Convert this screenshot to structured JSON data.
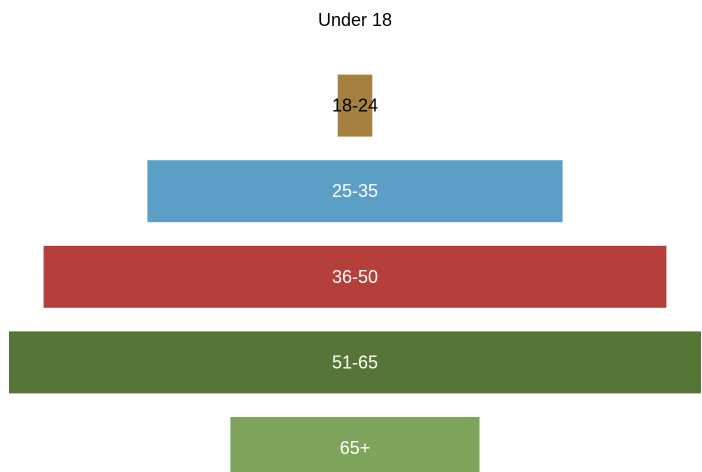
{
  "chart_data": {
    "type": "bar",
    "orientation": "horizontal",
    "layout": "centered-funnel",
    "categories": [
      "Under 18",
      "18-24",
      "25-35",
      "36-50",
      "51-65",
      "65+"
    ],
    "values": [
      0,
      5,
      60,
      90,
      100,
      36
    ],
    "value_unit": "percent of largest group",
    "colors": [
      "#ffffff",
      "#a5803f",
      "#5b9fc6",
      "#b53f3b",
      "#557636",
      "#7da45a"
    ],
    "label_colors": [
      "#000000",
      "#000000",
      "#ffffff",
      "#ffffff",
      "#ffffff",
      "#ffffff"
    ],
    "title": "",
    "xlabel": "",
    "ylabel": "",
    "legend": "none",
    "grid": false
  }
}
